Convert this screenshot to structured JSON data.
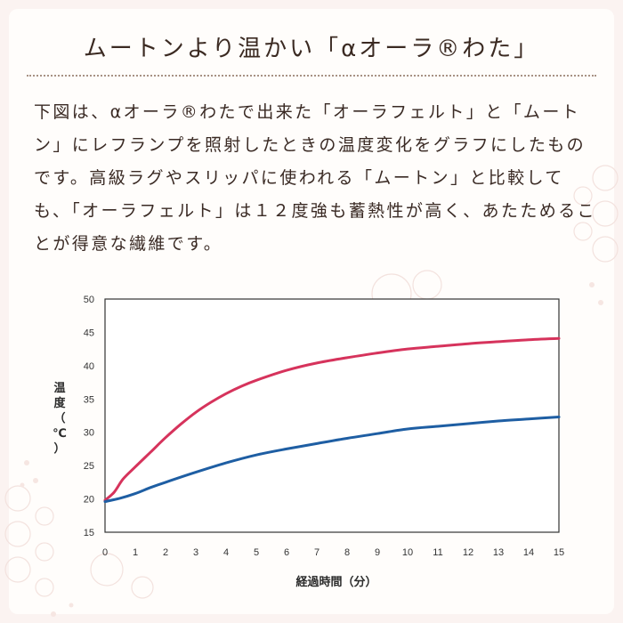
{
  "title": "ムートンより温かい「αオーラ®わた」",
  "description": "下図は、αオーラ®わたで出来た「オーラフェルト」と「ムートン」にレフランプを照射したときの温度変化をグラフにしたものです。高級ラグやスリッパに使われる「ムートン」と比較しても、「オーラフェルト」は１２度強も蓄熱性が高く、あたためることが得意な繊維です。",
  "chart_data": {
    "type": "line",
    "xlabel": "経過時間（分）",
    "ylabel": "温度（℃）",
    "xlim": [
      0,
      15
    ],
    "ylim": [
      15,
      50
    ],
    "x_ticks": [
      0,
      1,
      2,
      3,
      4,
      5,
      6,
      7,
      8,
      9,
      10,
      11,
      12,
      13,
      14,
      15
    ],
    "y_ticks": [
      15,
      20,
      25,
      30,
      35,
      40,
      45,
      50
    ],
    "grid": false,
    "legend": "none",
    "series": [
      {
        "color": "#d6335c",
        "x": [
          0,
          0.3,
          0.6,
          1,
          1.5,
          2,
          2.5,
          3,
          3.5,
          4,
          4.5,
          5,
          6,
          7,
          8,
          9,
          10,
          11,
          12,
          13,
          14,
          15
        ],
        "y": [
          19.8,
          21,
          23,
          24.8,
          27,
          29.2,
          31.2,
          33,
          34.5,
          35.8,
          36.9,
          37.8,
          39.3,
          40.4,
          41.2,
          41.9,
          42.5,
          42.9,
          43.3,
          43.6,
          43.9,
          44.1
        ]
      },
      {
        "color": "#1e5ea3",
        "x": [
          0,
          0.5,
          1,
          1.5,
          2,
          3,
          4,
          5,
          6,
          7,
          8,
          9,
          10,
          11,
          12,
          13,
          14,
          15
        ],
        "y": [
          19.6,
          20.1,
          20.8,
          21.7,
          22.5,
          24,
          25.4,
          26.6,
          27.5,
          28.3,
          29.1,
          29.8,
          30.5,
          30.9,
          31.3,
          31.7,
          32,
          32.3
        ]
      }
    ]
  }
}
